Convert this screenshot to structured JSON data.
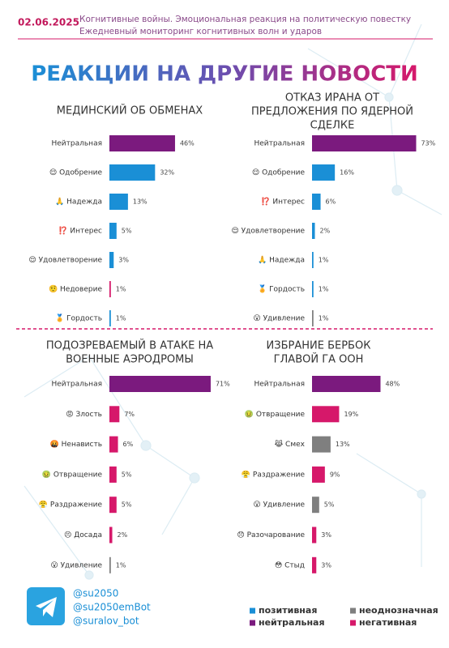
{
  "header": {
    "date": "02.06.2025",
    "line1": "Когнитивные войны. Эмоциональная реакция на политическую повестку",
    "line2": "Ежедневный мониторинг когнитивных волн и ударов"
  },
  "headline": "РЕАКЦИИ НА ДРУГИЕ НОВОСТИ",
  "chart_data": [
    {
      "type": "bar",
      "title": [
        "МЕДИНСКИЙ ОБ ОБМЕНАХ"
      ],
      "categories": [
        "Нейтральная",
        "😌 Одобрение",
        "🙏 Надежда",
        "⁉️ Интерес",
        "😌 Удовлетворение",
        "🤨 Недоверие",
        "🏅 Гордость"
      ],
      "values": [
        46,
        32,
        13,
        5,
        3,
        1,
        1
      ],
      "value_labels": [
        "46%",
        "32%",
        "13%",
        "5%",
        "3%",
        "1%",
        "1%"
      ],
      "colors": [
        "#7b1a7e",
        "#1a8fd6",
        "#1a8fd6",
        "#1a8fd6",
        "#1a8fd6",
        "#d6186a",
        "#1a8fd6"
      ]
    },
    {
      "type": "bar",
      "title": [
        "ОТКАЗ ИРАНА ОТ",
        "ПРЕДЛОЖЕНИЯ ПО ЯДЕРНОЙ",
        "СДЕЛКЕ"
      ],
      "categories": [
        "Нейтральная",
        "😌 Одобрение",
        "⁉️ Интерес",
        "😌 Удовлетворение",
        "🙏 Надежда",
        "🏅 Гордость",
        "😮 Удивление"
      ],
      "values": [
        73,
        16,
        6,
        2,
        1,
        1,
        1
      ],
      "value_labels": [
        "73%",
        "16%",
        "6%",
        "2%",
        "1%",
        "1%",
        "1%"
      ],
      "colors": [
        "#7b1a7e",
        "#1a8fd6",
        "#1a8fd6",
        "#1a8fd6",
        "#1a8fd6",
        "#1a8fd6",
        "#7f7f7f"
      ]
    },
    {
      "type": "bar",
      "title": [
        "ПОДОЗРЕВАЕМЫЙ В АТАКЕ НА",
        "ВОЕННЫЕ АЭРОДРОМЫ"
      ],
      "categories": [
        "Нейтральная",
        "😡 Злость",
        "🤬 Ненависть",
        "🤢 Отвращение",
        "😤 Раздражение",
        "😣 Досада",
        "😮 Удивление"
      ],
      "values": [
        71,
        7,
        6,
        5,
        5,
        2,
        1
      ],
      "value_labels": [
        "71%",
        "7%",
        "6%",
        "5%",
        "5%",
        "2%",
        "1%"
      ],
      "colors": [
        "#7b1a7e",
        "#d6186a",
        "#d6186a",
        "#d6186a",
        "#d6186a",
        "#d6186a",
        "#7f7f7f"
      ]
    },
    {
      "type": "bar",
      "title": [
        "ИЗБРАНИЕ БЕРБОК",
        "ГЛАВОЙ ГА ООН"
      ],
      "categories": [
        "Нейтральная",
        "🤢 Отвращение",
        "😹 Смех",
        "😤 Раздражение",
        "😮 Удивление",
        "😞 Разочарование",
        "😳 Стыд"
      ],
      "values": [
        48,
        19,
        13,
        9,
        5,
        3,
        3
      ],
      "value_labels": [
        "48%",
        "19%",
        "13%",
        "9%",
        "5%",
        "3%",
        "3%"
      ],
      "colors": [
        "#7b1a7e",
        "#d6186a",
        "#7f7f7f",
        "#d6186a",
        "#7f7f7f",
        "#d6186a",
        "#d6186a"
      ]
    }
  ],
  "footer": {
    "handles": [
      "@su2050",
      "@su2050emBot",
      "@suralov_bot"
    ],
    "legend": [
      {
        "name": "позитивная",
        "color": "#1a8fd6"
      },
      {
        "name": "нейтральная",
        "color": "#7b1a7e"
      },
      {
        "name": "неоднозначная",
        "color": "#7f7f7f"
      },
      {
        "name": "негативная",
        "color": "#d6186a"
      }
    ]
  }
}
